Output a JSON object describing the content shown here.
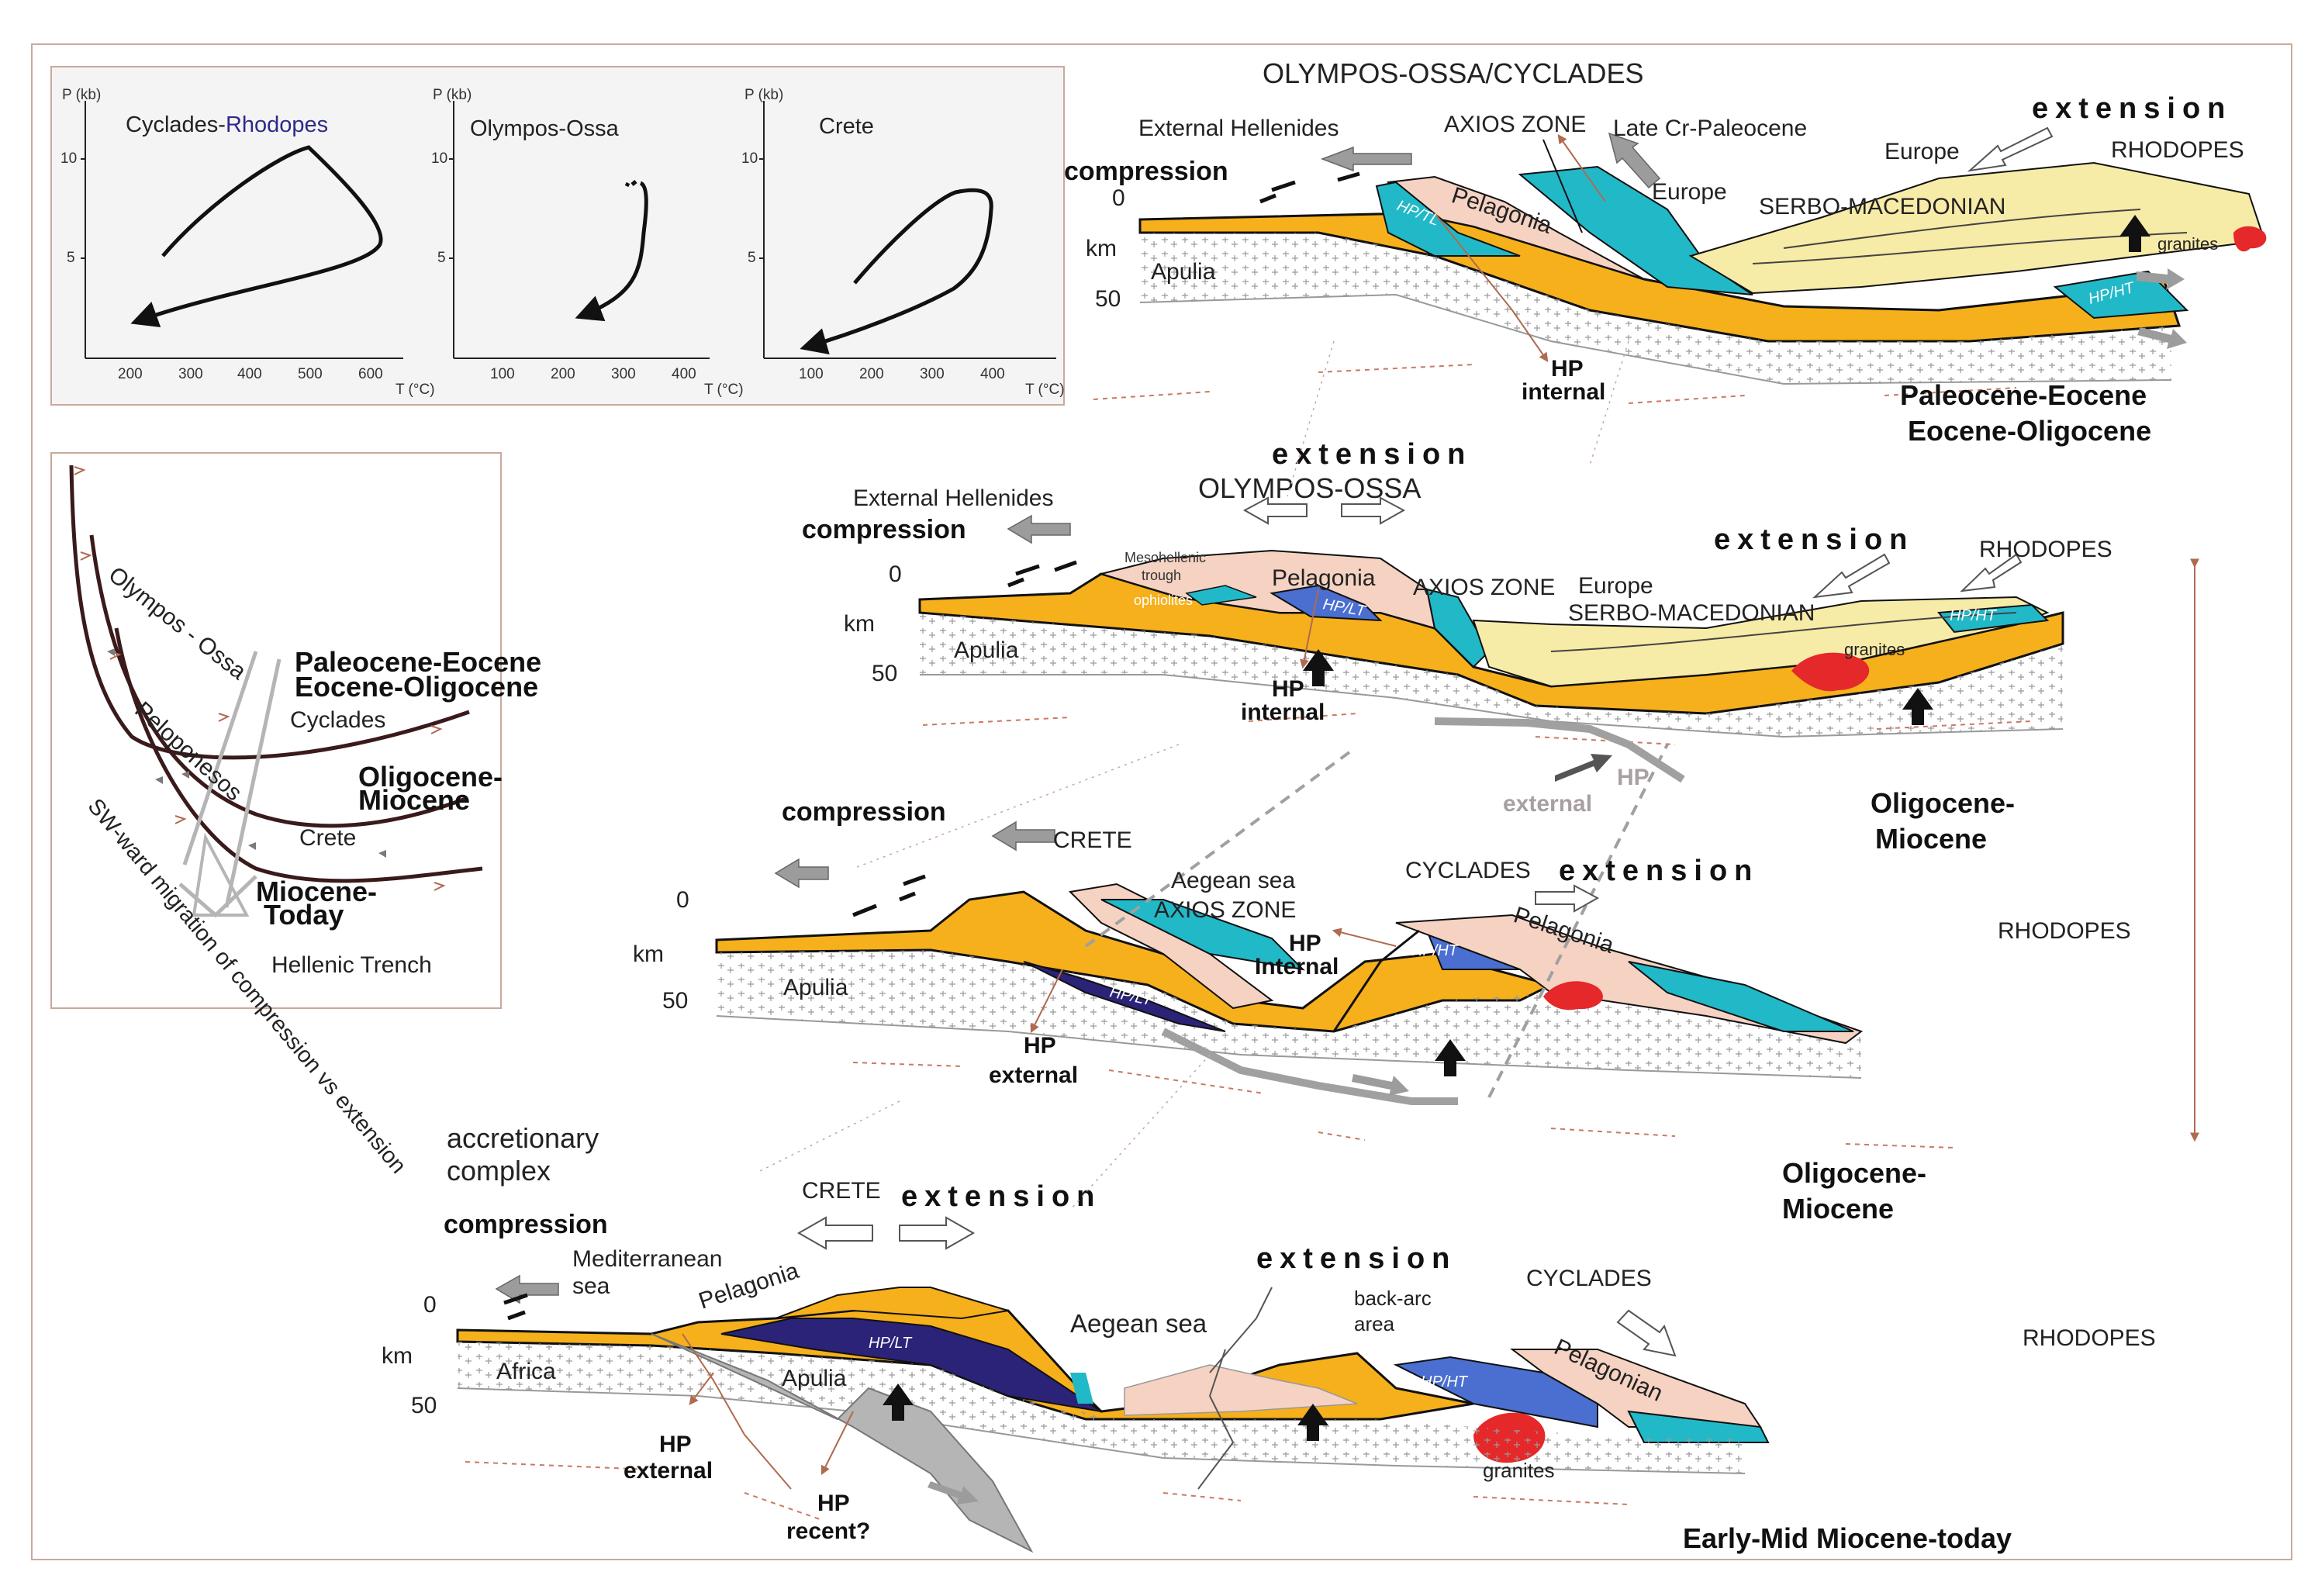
{
  "pt_diagrams": [
    {
      "title_a": "Cyclades-",
      "title_b": "Rhodopes",
      "title_b_color": "#2e2a8a",
      "y_axis": "P (kb)",
      "x_axis": "T (°C)",
      "y_ticks": [
        "10",
        "5"
      ],
      "x_ticks": [
        "200",
        "300",
        "400",
        "500",
        "600"
      ]
    },
    {
      "title_a": "Olympos-Ossa",
      "y_axis": "P (kb)",
      "x_axis": "T (°C)",
      "y_ticks": [
        "10",
        "5"
      ],
      "x_ticks": [
        "100",
        "200",
        "300",
        "400"
      ]
    },
    {
      "title_a": "Crete",
      "y_axis": "P (kb)",
      "x_axis": "T (°C)",
      "y_ticks": [
        "10",
        "5"
      ],
      "x_ticks": [
        "100",
        "200",
        "300",
        "400"
      ]
    }
  ],
  "map_panel": {
    "olympos_ossa": "Olympos - Ossa",
    "peloponesos": "Peloponesos",
    "cyclades": "Cyclades",
    "crete": "Crete",
    "hellenic_trench": "Hellenic Trench",
    "migration_caption": "SW-ward migration of compression vs extension",
    "age1_a": "Paleocene-Eocene",
    "age1_b": "Eocene-Oligocene",
    "age2_a": "Oligocene-",
    "age2_b": "Miocene",
    "age3_a": "Miocene-",
    "age3_b": "Today"
  },
  "section1": {
    "title": "OLYMPOS-OSSA/CYCLADES",
    "external_hellenides": "External Hellenides",
    "compression": "compression",
    "axios_zone": "AXIOS ZONE",
    "late_cr": "Late Cr-Paleocene",
    "extension": "extension",
    "europe_top": "Europe",
    "europe": "Europe",
    "rhodopes": "RHODOPES",
    "serbo": "SERBO-MACEDONIAN",
    "pelagonia": "Pelagonia",
    "hp_tl": "HP/TL",
    "hp_ht": "HP/HT",
    "granites": "granites",
    "apulia": "Apulia",
    "depth_0": "0",
    "km": "km",
    "depth_50": "50",
    "hp": "HP",
    "internal": "internal",
    "age_a": "Paleocene-Eocene",
    "age_b": "Eocene-Oligocene"
  },
  "section2": {
    "extension_top": "extension",
    "olympos": "OLYMPOS-OSSA",
    "external_hellenides": "External Hellenides",
    "compression": "compression",
    "mesohellenic_a": "Mesohellenic",
    "mesohellenic_b": "trough",
    "ophiolites": "ophiolites",
    "pelagonia": "Pelagonia",
    "hp_lt": "HP/LT",
    "axios_zone": "AXIOS ZONE",
    "europe": "Europe",
    "serbo": "SERBO-MACEDONIAN",
    "extension_right": "extension",
    "rhodopes": "RHODOPES",
    "hp_ht": "HP/HT",
    "granites": "granites",
    "apulia": "Apulia",
    "depth_0": "0",
    "km": "km",
    "depth_50": "50",
    "hp": "HP",
    "internal": "internal",
    "hp_ext_a": "HP",
    "hp_ext_b": "external",
    "age_a": "Oligocene-",
    "age_b": "Miocene"
  },
  "section3": {
    "compression": "compression",
    "crete": "CRETE",
    "aegean_sea": "Aegean sea",
    "axios_zone": "AXIOS ZONE",
    "cyclades": "CYCLADES",
    "extension": "extension",
    "pelagonia": "Pelagonia",
    "rhodopes": "RHODOPES",
    "hp_lt": "HP/LT",
    "hp_ht": "HP/HT",
    "apulia": "Apulia",
    "depth_0": "0",
    "km": "km",
    "depth_50": "50",
    "hp_a": "HP",
    "hp_b": "Internal",
    "hp_ext_a": "HP",
    "hp_ext_b": "external",
    "age_a": "Oligocene-",
    "age_b": "Miocene"
  },
  "section4": {
    "accretionary_a": "accretionary",
    "accretionary_b": "complex",
    "compression": "compression",
    "mediterranean_a": "Mediterranean",
    "mediterranean_b": "sea",
    "crete": "CRETE",
    "extension_left": "extension",
    "pelagonia": "Pelagonia",
    "hp_lt": "HP/LT",
    "aegean_sea": "Aegean sea",
    "extension_right": "extension",
    "backarc_a": "back-arc",
    "backarc_b": "area",
    "cyclades": "CYCLADES",
    "hp_ht": "HP/HT",
    "pelagonian": "Pelagonian",
    "rhodopes": "RHODOPES",
    "granites": "granites",
    "africa": "Africa",
    "apulia": "Apulia",
    "depth_0": "0",
    "km": "km",
    "depth_50": "50",
    "hp_ext_a": "HP",
    "hp_ext_b": "external",
    "hp_rec_a": "HP",
    "hp_rec_b": "recent?",
    "age": "Early-Mid Miocene-today"
  },
  "colors": {
    "orange": "#f6b01c",
    "cyan": "#21b9c8",
    "pink": "#f6d2c2",
    "yellow": "#f7eba8",
    "blue": "#4a6fd0",
    "navy": "#2b2378",
    "grey_arrow": "#9c9c9c",
    "red_granite": "#e5282a"
  }
}
